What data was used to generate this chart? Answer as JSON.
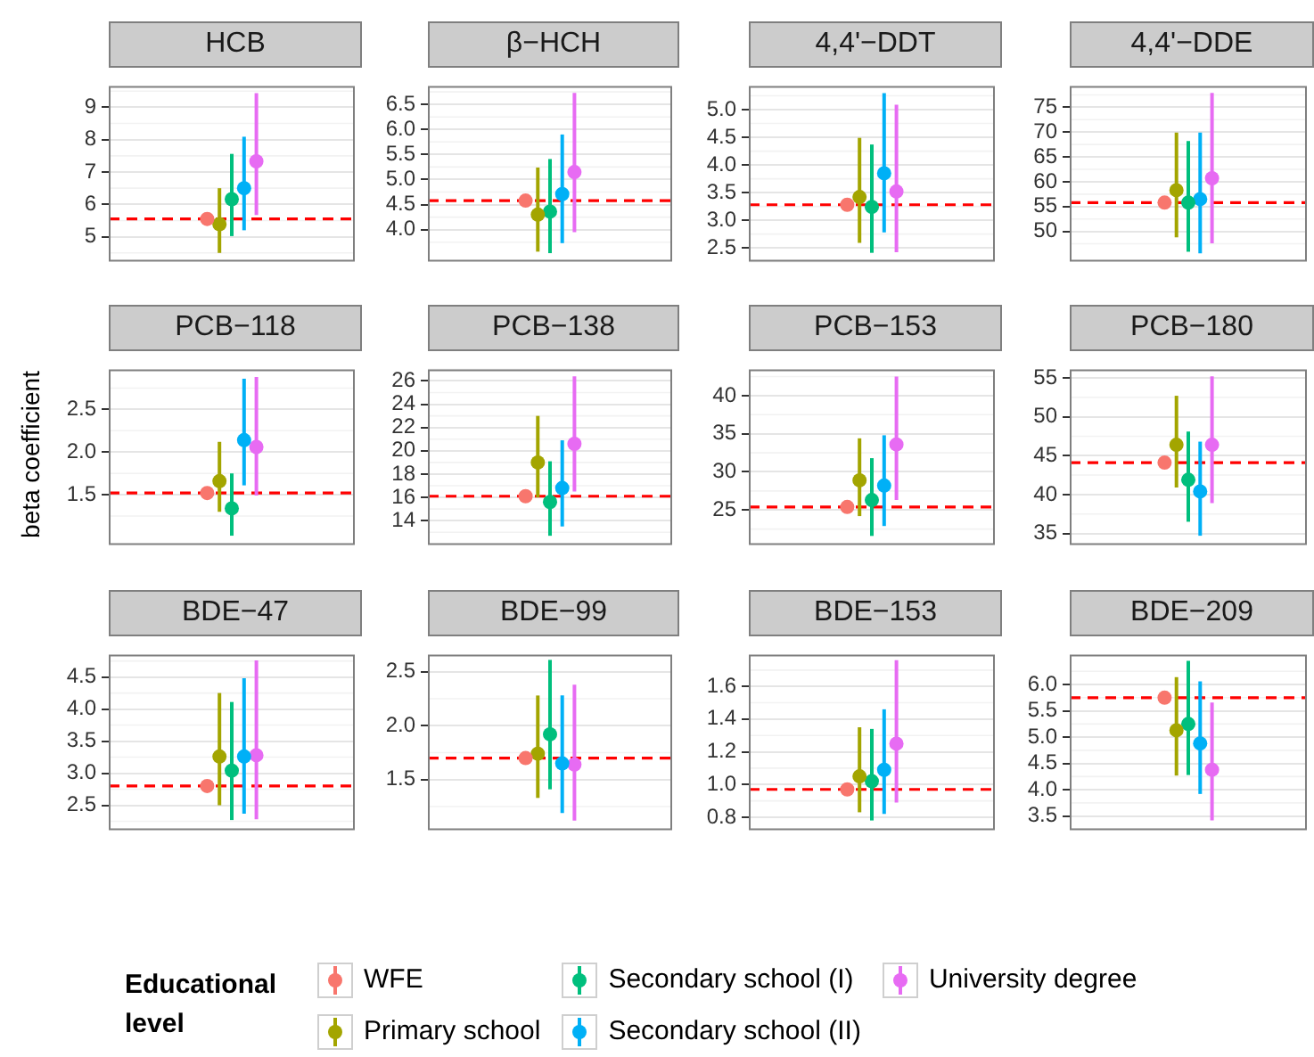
{
  "chart_data": [
    {
      "type": "scatter",
      "title": "HCB",
      "categories": [
        null
      ],
      "ylim": [
        4.23,
        9.66
      ],
      "yticks": [
        5,
        6,
        7,
        8,
        9
      ],
      "grid": "y",
      "tick_labels": "y",
      "marker": "circle",
      "legend": "bottom",
      "legend_title": "Educational level",
      "ref_lines": [
        {
          "axis": "y",
          "value": 5.55,
          "color": "#ff0000",
          "line_style": "dashed"
        }
      ],
      "series": [
        {
          "name": "WFE",
          "color": "#f8766d",
          "values": [
            5.55
          ],
          "errors": [
            null
          ]
        },
        {
          "name": "Primary school",
          "color": "#a3a500",
          "values": [
            5.39
          ],
          "errors": [
            [
              4.5,
              6.5
            ]
          ]
        },
        {
          "name": "Secondary school (I)",
          "color": "#00bf7d",
          "values": [
            6.16
          ],
          "errors": [
            [
              5.02,
              7.56
            ]
          ]
        },
        {
          "name": "Secondary school (II)",
          "color": "#00b0f6",
          "values": [
            6.5
          ],
          "errors": [
            [
              5.2,
              8.09
            ]
          ]
        },
        {
          "name": "University degree",
          "color": "#e76bf3",
          "values": [
            7.33
          ],
          "errors": [
            [
              5.67,
              9.44
            ]
          ]
        }
      ]
    },
    {
      "type": "scatter",
      "title": "β−HCH",
      "categories": [
        null
      ],
      "ylim": [
        3.36,
        6.87
      ],
      "yticks": [
        {
          "value": 4,
          "label": "4.0"
        },
        4.5,
        {
          "value": 5,
          "label": "5.0"
        },
        5.5,
        {
          "value": 6,
          "label": "6.0"
        },
        6.5
      ],
      "grid": "y",
      "tick_labels": "y",
      "marker": "circle",
      "ref_lines": [
        {
          "axis": "y",
          "value": 4.58,
          "color": "#ff0000",
          "line_style": "dashed"
        }
      ],
      "series": [
        {
          "color": "#f8766d",
          "values": [
            4.58
          ],
          "errors": [
            null
          ]
        },
        {
          "color": "#a3a500",
          "values": [
            4.3
          ],
          "errors": [
            [
              3.56,
              5.24
            ]
          ]
        },
        {
          "color": "#00bf7d",
          "values": [
            4.36
          ],
          "errors": [
            [
              3.53,
              5.41
            ]
          ]
        },
        {
          "color": "#00b0f6",
          "values": [
            4.71
          ],
          "errors": [
            [
              3.73,
              5.9
            ]
          ]
        },
        {
          "color": "#e76bf3",
          "values": [
            5.15
          ],
          "errors": [
            [
              3.95,
              6.73
            ]
          ]
        }
      ]
    },
    {
      "type": "scatter",
      "title": "4,4'−DDT",
      "categories": [
        null
      ],
      "ylim": [
        2.25,
        5.43
      ],
      "yticks": [
        2.5,
        {
          "value": 3,
          "label": "3.0"
        },
        3.5,
        {
          "value": 4,
          "label": "4.0"
        },
        4.5,
        {
          "value": 5,
          "label": "5.0"
        }
      ],
      "grid": "y",
      "tick_labels": "y",
      "marker": "circle",
      "ref_lines": [
        {
          "axis": "y",
          "value": 3.28,
          "color": "#ff0000",
          "line_style": "dashed"
        }
      ],
      "series": [
        {
          "color": "#f8766d",
          "values": [
            3.28
          ],
          "errors": [
            null
          ]
        },
        {
          "color": "#a3a500",
          "values": [
            3.42
          ],
          "errors": [
            [
              2.59,
              4.49
            ]
          ]
        },
        {
          "color": "#00bf7d",
          "values": [
            3.24
          ],
          "errors": [
            [
              2.41,
              4.37
            ]
          ]
        },
        {
          "color": "#00b0f6",
          "values": [
            3.85
          ],
          "errors": [
            [
              2.78,
              5.3
            ]
          ]
        },
        {
          "color": "#e76bf3",
          "values": [
            3.52
          ],
          "errors": [
            [
              2.42,
              5.09
            ]
          ]
        }
      ]
    },
    {
      "type": "scatter",
      "title": "4,4'−DDE",
      "categories": [
        null
      ],
      "ylim": [
        43.9,
        79.3
      ],
      "yticks": [
        50,
        55,
        60,
        65,
        70,
        75
      ],
      "grid": "y",
      "tick_labels": "y",
      "marker": "circle",
      "ref_lines": [
        {
          "axis": "y",
          "value": 55.8,
          "color": "#ff0000",
          "line_style": "dashed"
        }
      ],
      "series": [
        {
          "color": "#f8766d",
          "values": [
            55.8
          ],
          "errors": [
            null
          ]
        },
        {
          "color": "#a3a500",
          "values": [
            58.3
          ],
          "errors": [
            [
              48.8,
              69.9
            ]
          ]
        },
        {
          "color": "#00bf7d",
          "values": [
            55.8
          ],
          "errors": [
            [
              45.9,
              68.2
            ]
          ]
        },
        {
          "color": "#00b0f6",
          "values": [
            56.5
          ],
          "errors": [
            [
              45.6,
              69.9
            ]
          ]
        },
        {
          "color": "#e76bf3",
          "values": [
            60.7
          ],
          "errors": [
            [
              47.6,
              77.9
            ]
          ]
        }
      ]
    },
    {
      "type": "scatter",
      "title": "PCB−118",
      "ylabel": "beta coefficient",
      "categories": [
        null
      ],
      "ylim": [
        0.91,
        2.97
      ],
      "yticks": [
        1.5,
        {
          "value": 2,
          "label": "2.0"
        },
        2.5
      ],
      "grid": "y",
      "tick_labels": "y",
      "marker": "circle",
      "ref_lines": [
        {
          "axis": "y",
          "value": 1.52,
          "color": "#ff0000",
          "line_style": "dashed"
        }
      ],
      "series": [
        {
          "color": "#f8766d",
          "values": [
            1.52
          ],
          "errors": [
            null
          ]
        },
        {
          "color": "#a3a500",
          "values": [
            1.66
          ],
          "errors": [
            [
              1.3,
              2.12
            ]
          ]
        },
        {
          "color": "#00bf7d",
          "values": [
            1.34
          ],
          "errors": [
            [
              1.02,
              1.75
            ]
          ]
        },
        {
          "color": "#00b0f6",
          "values": [
            2.14
          ],
          "errors": [
            [
              1.61,
              2.86
            ]
          ]
        },
        {
          "color": "#e76bf3",
          "values": [
            2.06
          ],
          "errors": [
            [
              1.49,
              2.88
            ]
          ]
        }
      ]
    },
    {
      "type": "scatter",
      "title": "PCB−138",
      "categories": [
        null
      ],
      "ylim": [
        11.9,
        27
      ],
      "yticks": [
        14,
        16,
        18,
        20,
        22,
        24,
        26
      ],
      "grid": "y",
      "tick_labels": "y",
      "marker": "circle",
      "ref_lines": [
        {
          "axis": "y",
          "value": 16.1,
          "color": "#ff0000",
          "line_style": "dashed"
        }
      ],
      "series": [
        {
          "color": "#f8766d",
          "values": [
            16.1
          ],
          "errors": [
            null
          ]
        },
        {
          "color": "#a3a500",
          "values": [
            19.0
          ],
          "errors": [
            [
              16.0,
              23
            ]
          ]
        },
        {
          "color": "#00bf7d",
          "values": [
            15.6
          ],
          "errors": [
            [
              12.7,
              19.1
            ]
          ]
        },
        {
          "color": "#00b0f6",
          "values": [
            16.8
          ],
          "errors": [
            [
              13.5,
              20.9
            ]
          ]
        },
        {
          "color": "#e76bf3",
          "values": [
            20.6
          ],
          "errors": [
            [
              16.5,
              26.4
            ]
          ]
        }
      ]
    },
    {
      "type": "scatter",
      "title": "PCB−153",
      "categories": [
        null
      ],
      "ylim": [
        20.4,
        43.45
      ],
      "yticks": [
        25,
        30,
        35,
        40
      ],
      "grid": "y",
      "tick_labels": "y",
      "marker": "circle",
      "ref_lines": [
        {
          "axis": "y",
          "value": 25.4,
          "color": "#ff0000",
          "line_style": "dashed"
        }
      ],
      "series": [
        {
          "color": "#f8766d",
          "values": [
            25.4
          ],
          "errors": [
            null
          ]
        },
        {
          "color": "#a3a500",
          "values": [
            28.9
          ],
          "errors": [
            [
              24.2,
              34.4
            ]
          ]
        },
        {
          "color": "#00bf7d",
          "values": [
            26.3
          ],
          "errors": [
            [
              21.6,
              31.8
            ]
          ]
        },
        {
          "color": "#00b0f6",
          "values": [
            28.2
          ],
          "errors": [
            [
              22.9,
              34.8
            ]
          ]
        },
        {
          "color": "#e76bf3",
          "values": [
            33.6
          ],
          "errors": [
            [
              26.3,
              42.5
            ]
          ]
        }
      ]
    },
    {
      "type": "scatter",
      "title": "PCB−180",
      "categories": [
        null
      ],
      "ylim": [
        33.5,
        56.1
      ],
      "yticks": [
        35,
        40,
        45,
        50,
        55
      ],
      "grid": "y",
      "tick_labels": "y",
      "marker": "circle",
      "ref_lines": [
        {
          "axis": "y",
          "value": 44.1,
          "color": "#ff0000",
          "line_style": "dashed"
        }
      ],
      "series": [
        {
          "color": "#f8766d",
          "values": [
            44.1
          ],
          "errors": [
            null
          ]
        },
        {
          "color": "#a3a500",
          "values": [
            46.4
          ],
          "errors": [
            [
              40.9,
              52.7
            ]
          ]
        },
        {
          "color": "#00bf7d",
          "values": [
            41.9
          ],
          "errors": [
            [
              36.5,
              48.1
            ]
          ]
        },
        {
          "color": "#00b0f6",
          "values": [
            40.4
          ],
          "errors": [
            [
              34.7,
              46.8
            ]
          ]
        },
        {
          "color": "#e76bf3",
          "values": [
            46.4
          ],
          "errors": [
            [
              38.9,
              55.2
            ]
          ]
        }
      ]
    },
    {
      "type": "scatter",
      "title": "BDE−47",
      "categories": [
        null
      ],
      "ylim": [
        2.11,
        4.85
      ],
      "yticks": [
        2.5,
        {
          "value": 3,
          "label": "3.0"
        },
        3.5,
        {
          "value": 4,
          "label": "4.0"
        },
        4.5
      ],
      "grid": "y",
      "tick_labels": "y",
      "marker": "circle",
      "ref_lines": [
        {
          "axis": "y",
          "value": 2.8,
          "color": "#ff0000",
          "line_style": "dashed"
        }
      ],
      "series": [
        {
          "color": "#f8766d",
          "values": [
            2.8
          ],
          "errors": [
            null
          ]
        },
        {
          "color": "#a3a500",
          "values": [
            3.26
          ],
          "errors": [
            [
              2.5,
              4.25
            ]
          ]
        },
        {
          "color": "#00bf7d",
          "values": [
            3.04
          ],
          "errors": [
            [
              2.27,
              4.11
            ]
          ]
        },
        {
          "color": "#00b0f6",
          "values": [
            3.26
          ],
          "errors": [
            [
              2.37,
              4.48
            ]
          ]
        },
        {
          "color": "#e76bf3",
          "values": [
            3.28
          ],
          "errors": [
            [
              2.28,
              4.76
            ]
          ]
        }
      ]
    },
    {
      "type": "scatter",
      "title": "BDE−99",
      "categories": [
        null
      ],
      "ylim": [
        1.03,
        2.66
      ],
      "yticks": [
        1.5,
        {
          "value": 2,
          "label": "2.0"
        },
        2.5
      ],
      "grid": "y",
      "tick_labels": "y",
      "marker": "circle",
      "ref_lines": [
        {
          "axis": "y",
          "value": 1.7,
          "color": "#ff0000",
          "line_style": "dashed"
        }
      ],
      "series": [
        {
          "color": "#f8766d",
          "values": [
            1.7
          ],
          "errors": [
            null
          ]
        },
        {
          "color": "#a3a500",
          "values": [
            1.74
          ],
          "errors": [
            [
              1.33,
              2.28
            ]
          ]
        },
        {
          "color": "#00bf7d",
          "values": [
            1.92
          ],
          "errors": [
            [
              1.41,
              2.61
            ]
          ]
        },
        {
          "color": "#00b0f6",
          "values": [
            1.65
          ],
          "errors": [
            [
              1.19,
              2.28
            ]
          ]
        },
        {
          "color": "#e76bf3",
          "values": [
            1.64
          ],
          "errors": [
            [
              1.12,
              2.38
            ]
          ]
        }
      ]
    },
    {
      "type": "scatter",
      "title": "BDE−153",
      "categories": [
        null
      ],
      "ylim": [
        0.72,
        1.795
      ],
      "yticks": [
        0.8,
        {
          "value": 1,
          "label": "1.0"
        },
        1.2,
        1.4,
        1.6
      ],
      "grid": "y",
      "tick_labels": "y",
      "marker": "circle",
      "ref_lines": [
        {
          "axis": "y",
          "value": 0.97,
          "color": "#ff0000",
          "line_style": "dashed"
        }
      ],
      "series": [
        {
          "color": "#f8766d",
          "values": [
            0.97
          ],
          "errors": [
            null
          ]
        },
        {
          "color": "#a3a500",
          "values": [
            1.05
          ],
          "errors": [
            [
              0.83,
              1.35
            ]
          ]
        },
        {
          "color": "#00bf7d",
          "values": [
            1.02
          ],
          "errors": [
            [
              0.78,
              1.34
            ]
          ]
        },
        {
          "color": "#00b0f6",
          "values": [
            1.09
          ],
          "errors": [
            [
              0.82,
              1.46
            ]
          ]
        },
        {
          "color": "#e76bf3",
          "values": [
            1.25
          ],
          "errors": [
            [
              0.89,
              1.76
            ]
          ]
        }
      ]
    },
    {
      "type": "scatter",
      "title": "BDE−209",
      "categories": [
        null
      ],
      "ylim": [
        3.23,
        6.57
      ],
      "yticks": [
        3.5,
        {
          "value": 4,
          "label": "4.0"
        },
        4.5,
        {
          "value": 5,
          "label": "5.0"
        },
        5.5,
        {
          "value": 6,
          "label": "6.0"
        }
      ],
      "grid": "y",
      "tick_labels": "y",
      "marker": "circle",
      "ref_lines": [
        {
          "axis": "y",
          "value": 5.75,
          "color": "#ff0000",
          "line_style": "dashed"
        }
      ],
      "series": [
        {
          "color": "#f8766d",
          "values": [
            5.75
          ],
          "errors": [
            null
          ]
        },
        {
          "color": "#a3a500",
          "values": [
            5.13
          ],
          "errors": [
            [
              4.27,
              6.14
            ]
          ]
        },
        {
          "color": "#00bf7d",
          "values": [
            5.25
          ],
          "errors": [
            [
              4.28,
              6.45
            ]
          ]
        },
        {
          "color": "#00b0f6",
          "values": [
            4.88
          ],
          "errors": [
            [
              3.92,
              6.06
            ]
          ]
        },
        {
          "color": "#e76bf3",
          "values": [
            4.38
          ],
          "errors": [
            [
              3.42,
              5.66
            ]
          ]
        }
      ]
    }
  ]
}
